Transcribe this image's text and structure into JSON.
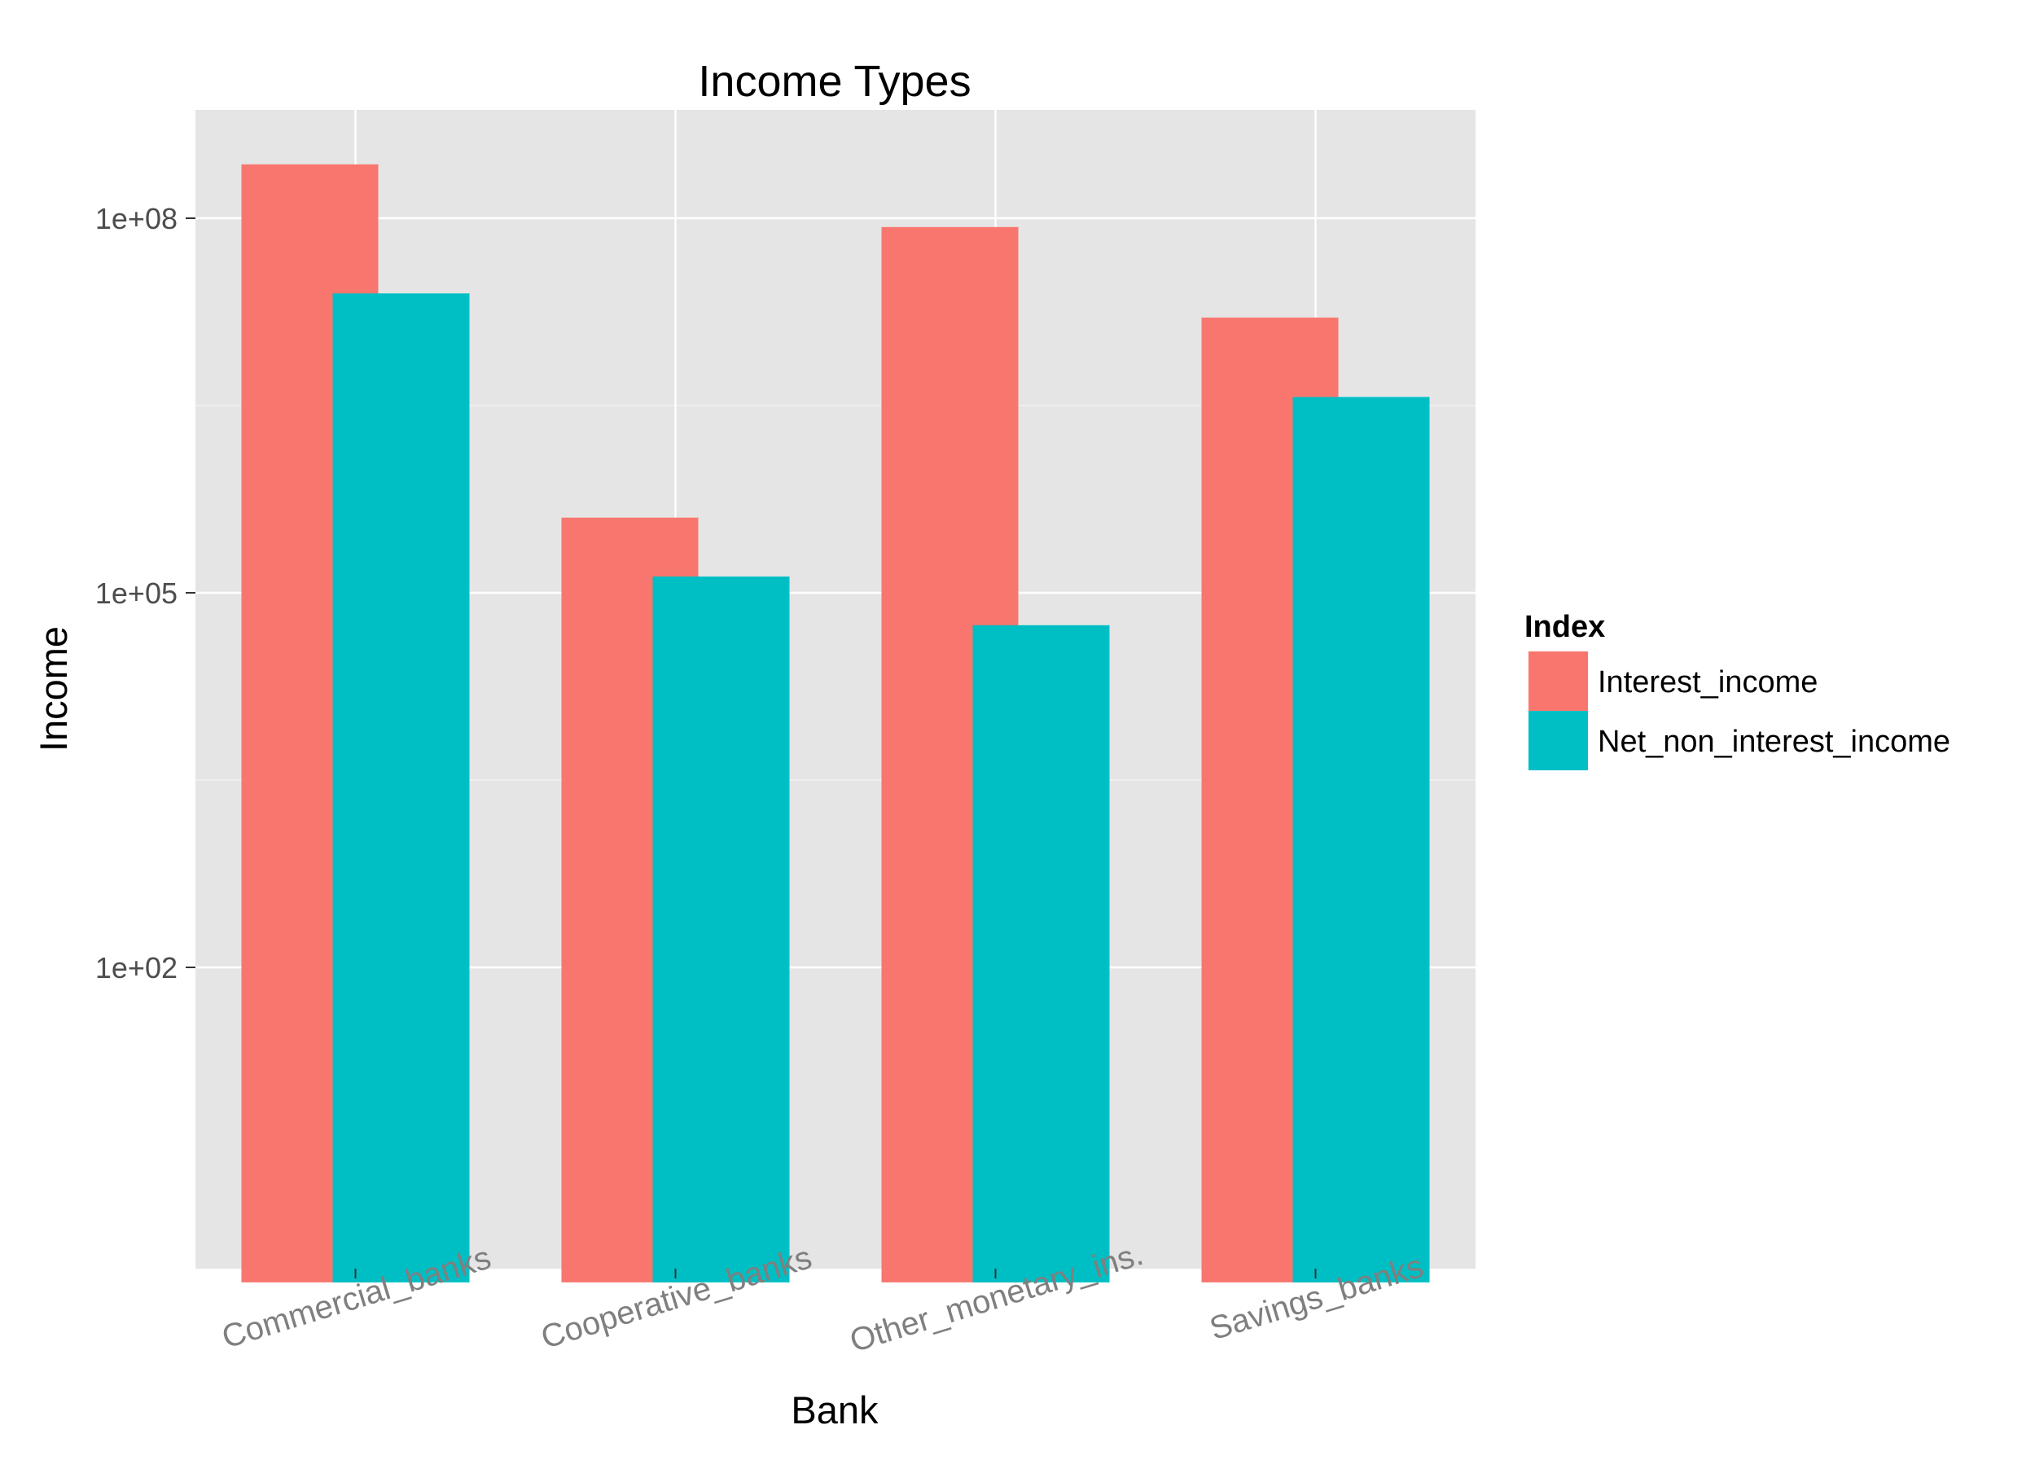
{
  "chart_data": {
    "type": "bar",
    "title": "Income Types",
    "xlabel": "Bank",
    "ylabel": "Income",
    "y_scale": "log10",
    "ylim": [
      0.2,
      450000000
    ],
    "y_ticks": [
      {
        "value": 100,
        "label": "1e+02"
      },
      {
        "value": 100000,
        "label": "1e+05"
      },
      {
        "value": 100000000,
        "label": "1e+08"
      }
    ],
    "bar_base": 0.3,
    "categories": [
      "Commercial_banks",
      "Cooperative_banks",
      "Other_monetary_ins.",
      "Savings_banks"
    ],
    "legend_title": "Index",
    "legend_position": "right",
    "grid": true,
    "series": [
      {
        "name": "Interest_income",
        "color": "#F8766D",
        "values": [
          270000000,
          400000,
          85000000,
          16000000
        ]
      },
      {
        "name": "Net_non_interest_income",
        "color": "#00BFC4",
        "values": [
          25000000,
          135000,
          55000,
          3700000
        ]
      }
    ],
    "panel_color": "#E5E5E5",
    "grid_color": "#FFFFFF"
  }
}
